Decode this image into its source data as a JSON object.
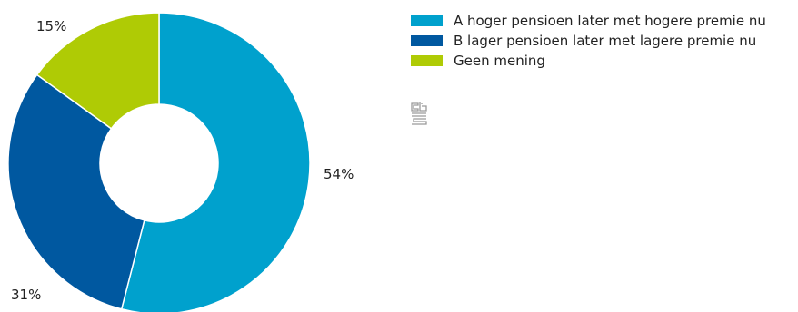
{
  "chart_data": {
    "type": "pie",
    "donut": true,
    "title": "",
    "slices": [
      {
        "label": "A hoger pensioen later met hogere premie nu",
        "value": 54,
        "display": "54%",
        "color": "#00a1cd"
      },
      {
        "label": "B lager pensioen later met lagere premie nu",
        "value": 31,
        "display": "31%",
        "color": "#0058a0"
      },
      {
        "label": "Geen mening",
        "value": 15,
        "display": "15%",
        "color": "#afcb05"
      }
    ],
    "legend_position": "top-right"
  },
  "logo": {
    "icon": "cbs-logo-icon",
    "color": "#9a9a9a"
  }
}
